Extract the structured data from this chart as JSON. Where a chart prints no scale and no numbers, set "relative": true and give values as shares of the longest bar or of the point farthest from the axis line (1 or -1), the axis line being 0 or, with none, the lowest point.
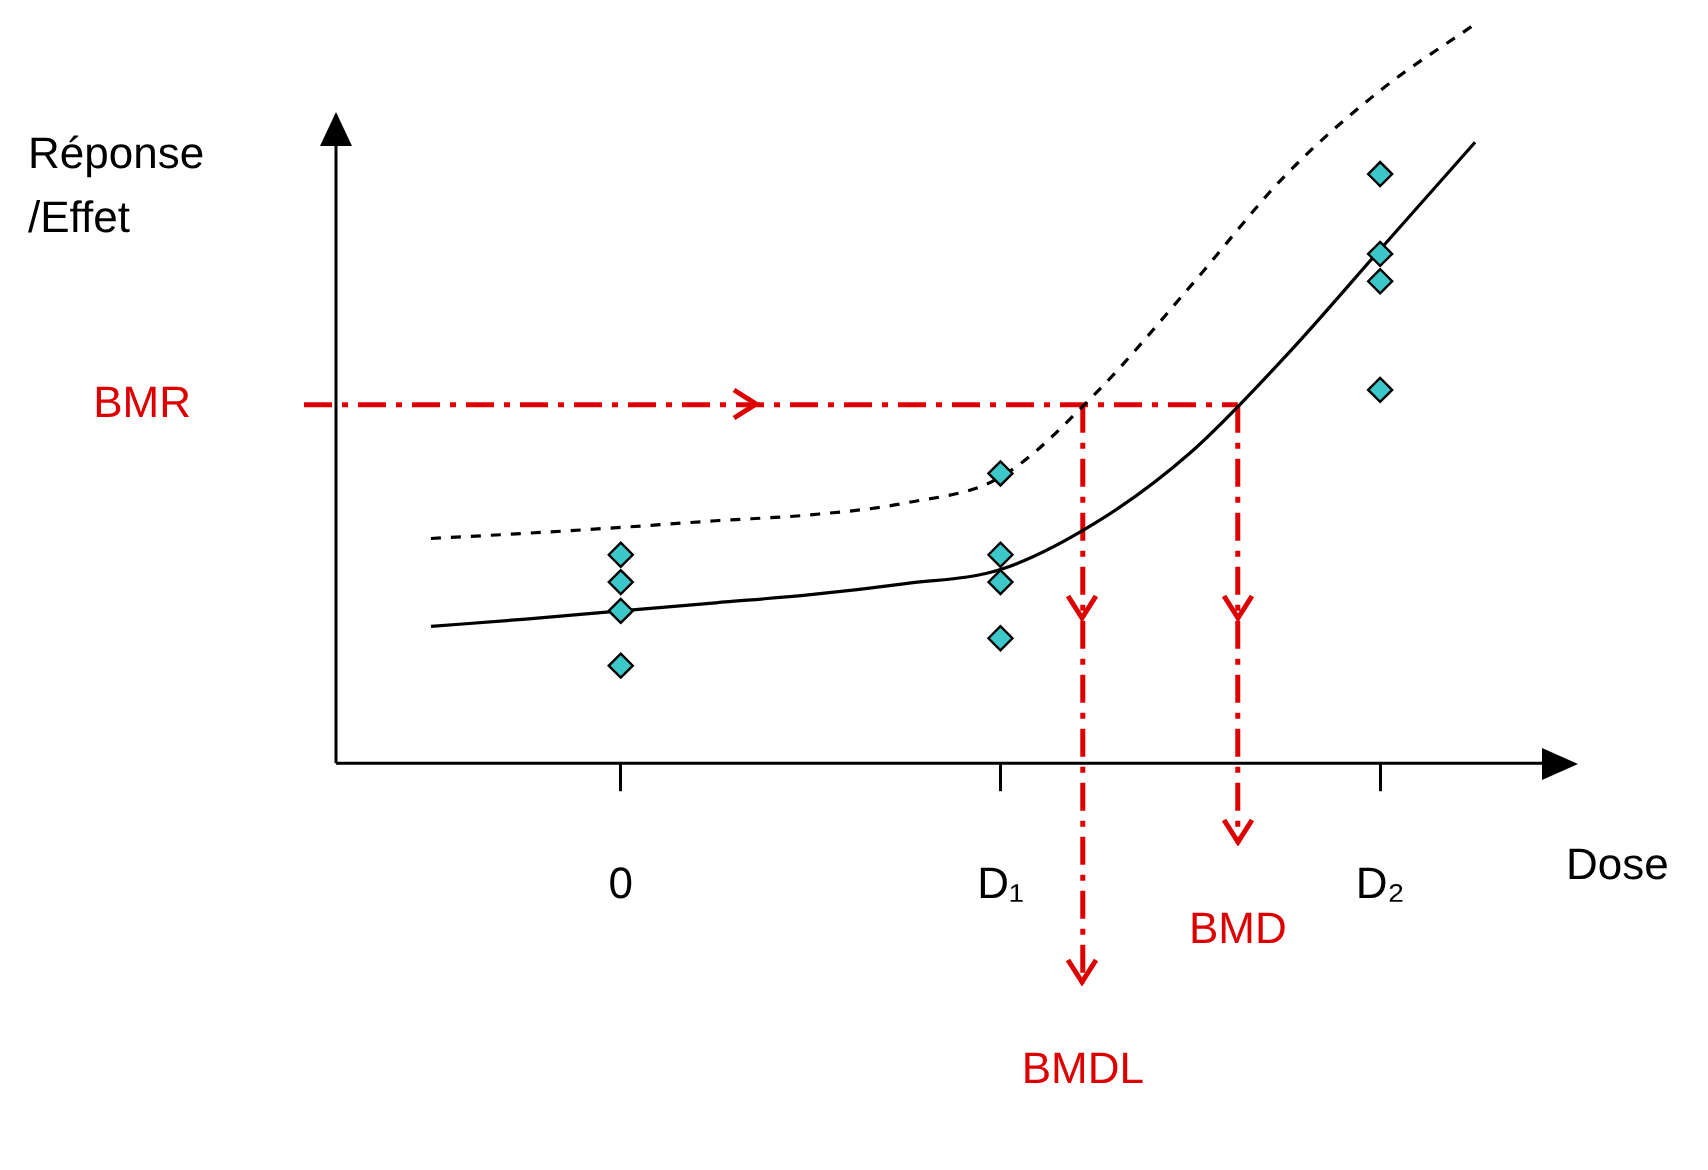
{
  "chart_data": {
    "type": "scatter",
    "relative": true,
    "xlabel": "Dose",
    "ylabel": "Réponse /Effet",
    "categories": [
      null,
      null,
      null,
      "0",
      null,
      null,
      null,
      "D₁",
      null,
      null,
      null,
      "D₂",
      null,
      null
    ],
    "legend": false,
    "grid": false,
    "marker": "diamond",
    "series": [
      {
        "color": "#3cc8c8",
        "x": [
          "0",
          "0",
          "0",
          "0",
          "D₁",
          "D₁",
          "D₁",
          "D₁",
          "D₂",
          "D₂",
          "D₂",
          "D₂"
        ],
        "values": [
          0.282,
          0.245,
          0.206,
          0.132,
          0.392,
          0.282,
          0.245,
          0.169,
          0.797,
          0.689,
          0.652,
          0.505
        ]
      },
      {
        "type": "line",
        "color": "#000000",
        "line_style": "solid",
        "marker": "none",
        "values": [
          null,
          0.185,
          0.195,
          0.206,
          0.217,
          0.228,
          0.243,
          0.262,
          0.325,
          0.42,
          0.55,
          0.695,
          0.84,
          null
        ]
      },
      {
        "type": "line",
        "color": "#000000",
        "line_style": "dashed",
        "marker": "none",
        "values": [
          null,
          0.304,
          0.311,
          0.319,
          0.328,
          0.336,
          0.352,
          0.387,
          0.5,
          0.645,
          0.795,
          0.91,
          1,
          null
        ]
      }
    ],
    "ref_lines": [
      {
        "axis": "y",
        "value": 0.485,
        "label": "BMR",
        "color": "#dd0000",
        "line_style": "dashed"
      }
    ],
    "annotations": [
      "BMD",
      "BMDL"
    ]
  }
}
